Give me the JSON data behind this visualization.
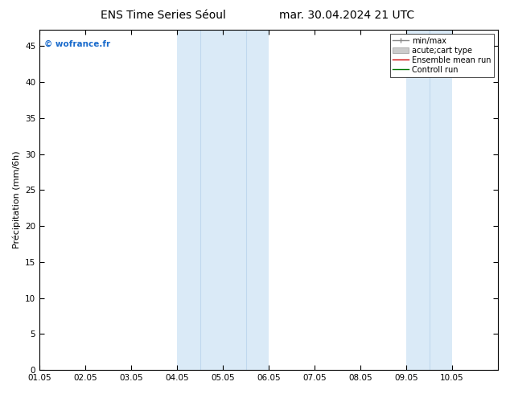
{
  "title_left": "ENS Time Series Séoul",
  "title_right": "mar. 30.04.2024 21 UTC",
  "ylabel": "Précipitation (mm/6h)",
  "ylim": [
    0,
    47.25
  ],
  "yticks": [
    0,
    5,
    10,
    15,
    20,
    25,
    30,
    35,
    40,
    45
  ],
  "xlim": [
    0,
    10
  ],
  "xtick_labels": [
    "01.05",
    "02.05",
    "03.05",
    "04.05",
    "05.05",
    "06.05",
    "07.05",
    "08.05",
    "09.05",
    "10.05"
  ],
  "xtick_positions": [
    0,
    1,
    2,
    3,
    4,
    5,
    6,
    7,
    8,
    9
  ],
  "shaded_regions": [
    {
      "xmin": 3.0,
      "xmax": 3.5,
      "color": "#daeaf7"
    },
    {
      "xmin": 3.5,
      "xmax": 4.0,
      "color": "#daeaf7"
    },
    {
      "xmin": 4.0,
      "xmax": 4.5,
      "color": "#daeaf7"
    },
    {
      "xmin": 4.5,
      "xmax": 5.0,
      "color": "#daeaf7"
    },
    {
      "xmin": 8.0,
      "xmax": 8.5,
      "color": "#daeaf7"
    },
    {
      "xmin": 8.5,
      "xmax": 9.0,
      "color": "#daeaf7"
    }
  ],
  "shaded_blocks": [
    {
      "xmin": 3.0,
      "xmax": 5.0
    },
    {
      "xmin": 8.0,
      "xmax": 9.0
    }
  ],
  "watermark": "© wofrance.fr",
  "watermark_color": "#1a6bcc",
  "legend_entries": [
    {
      "label": "min/max",
      "color": "#888888",
      "lw": 1.0,
      "style": "line_with_bar"
    },
    {
      "label": "acute;cart type",
      "color": "#cccccc",
      "lw": 5,
      "style": "band"
    },
    {
      "label": "Ensemble mean run",
      "color": "#cc0000",
      "lw": 1.0,
      "style": "line"
    },
    {
      "label": "Controll run",
      "color": "#007700",
      "lw": 1.0,
      "style": "line"
    }
  ],
  "bg_color": "#ffffff",
  "plot_bg_color": "#ffffff",
  "border_color": "#000000",
  "tick_color": "#000000",
  "title_fontsize": 10,
  "label_fontsize": 8,
  "tick_fontsize": 7.5,
  "legend_fontsize": 7
}
